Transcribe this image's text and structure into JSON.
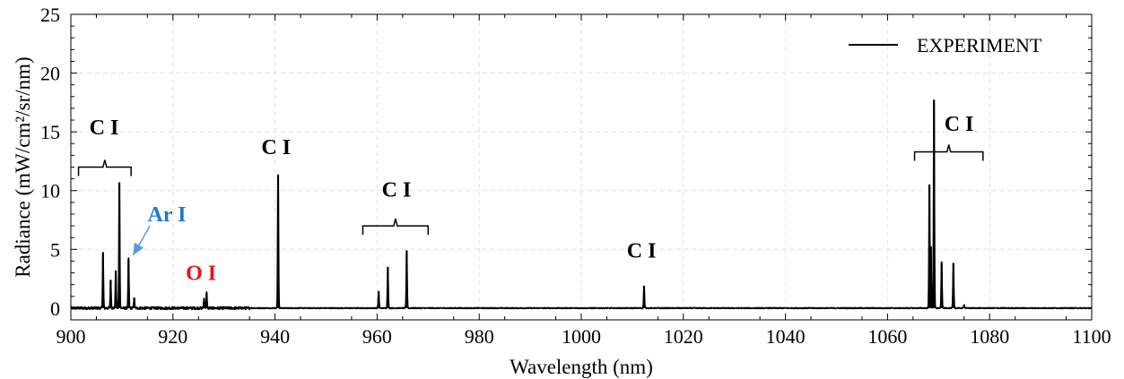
{
  "chart_data": {
    "type": "line",
    "xlabel": "Wavelength (nm)",
    "ylabel": "Radiance (mW/cm²/sr/nm)",
    "xlim": [
      900,
      1100
    ],
    "ylim": [
      -1,
      25
    ],
    "x_ticks": [
      900,
      920,
      940,
      960,
      980,
      1000,
      1020,
      1040,
      1060,
      1080,
      1100
    ],
    "y_ticks": [
      0,
      5,
      10,
      15,
      20,
      25
    ],
    "grid": true,
    "legend_position": "top-right",
    "colors": {
      "line": "#000000",
      "ar_label": "#1f77d0",
      "ar_arrow": "#5b9bd5",
      "o_label": "#e8121b",
      "grid": "#e3e3e3"
    },
    "series": [
      {
        "name": "EXPERIMENT",
        "baseline": 0,
        "peaks": [
          {
            "x": 906.3,
            "y": 4.7
          },
          {
            "x": 907.8,
            "y": 2.4
          },
          {
            "x": 908.8,
            "y": 3.2
          },
          {
            "x": 909.5,
            "y": 10.7
          },
          {
            "x": 911.3,
            "y": 4.2
          },
          {
            "x": 912.4,
            "y": 0.9
          },
          {
            "x": 926.1,
            "y": 0.8
          },
          {
            "x": 926.6,
            "y": 1.3
          },
          {
            "x": 940.6,
            "y": 11.3
          },
          {
            "x": 960.3,
            "y": 1.4
          },
          {
            "x": 962.1,
            "y": 3.5
          },
          {
            "x": 965.8,
            "y": 4.9
          },
          {
            "x": 1012.3,
            "y": 1.9
          },
          {
            "x": 1068.2,
            "y": 10.5
          },
          {
            "x": 1068.5,
            "y": 5.2
          },
          {
            "x": 1069.1,
            "y": 17.7
          },
          {
            "x": 1070.6,
            "y": 3.9
          },
          {
            "x": 1072.9,
            "y": 3.8
          },
          {
            "x": 1075.0,
            "y": 0.3
          }
        ]
      }
    ],
    "annotations": [
      {
        "text": "C I",
        "x": 906.5,
        "y": 14.8,
        "color": "#000000"
      },
      {
        "text": "C I",
        "x": 940.2,
        "y": 13.1,
        "color": "#000000"
      },
      {
        "text": "C I",
        "x": 963.8,
        "y": 9.5,
        "color": "#000000"
      },
      {
        "text": "C I",
        "x": 1011.8,
        "y": 4.3,
        "color": "#000000"
      },
      {
        "text": "C I",
        "x": 1074.0,
        "y": 15.1,
        "color": "#000000"
      },
      {
        "text": "Ar I",
        "x": 918.8,
        "y": 7.4,
        "color": "#1f77d0"
      },
      {
        "text": "O I",
        "x": 925.5,
        "y": 2.4,
        "color": "#e8121b"
      }
    ],
    "brackets": [
      {
        "x1": 901.5,
        "x2": 911.8,
        "y": 12.0
      },
      {
        "x1": 957.2,
        "x2": 970.0,
        "y": 7.0
      },
      {
        "x1": 1065.3,
        "x2": 1078.7,
        "y": 13.3
      }
    ],
    "arrow": {
      "from": [
        915.5,
        7.0
      ],
      "to": [
        912.2,
        4.5
      ]
    }
  }
}
